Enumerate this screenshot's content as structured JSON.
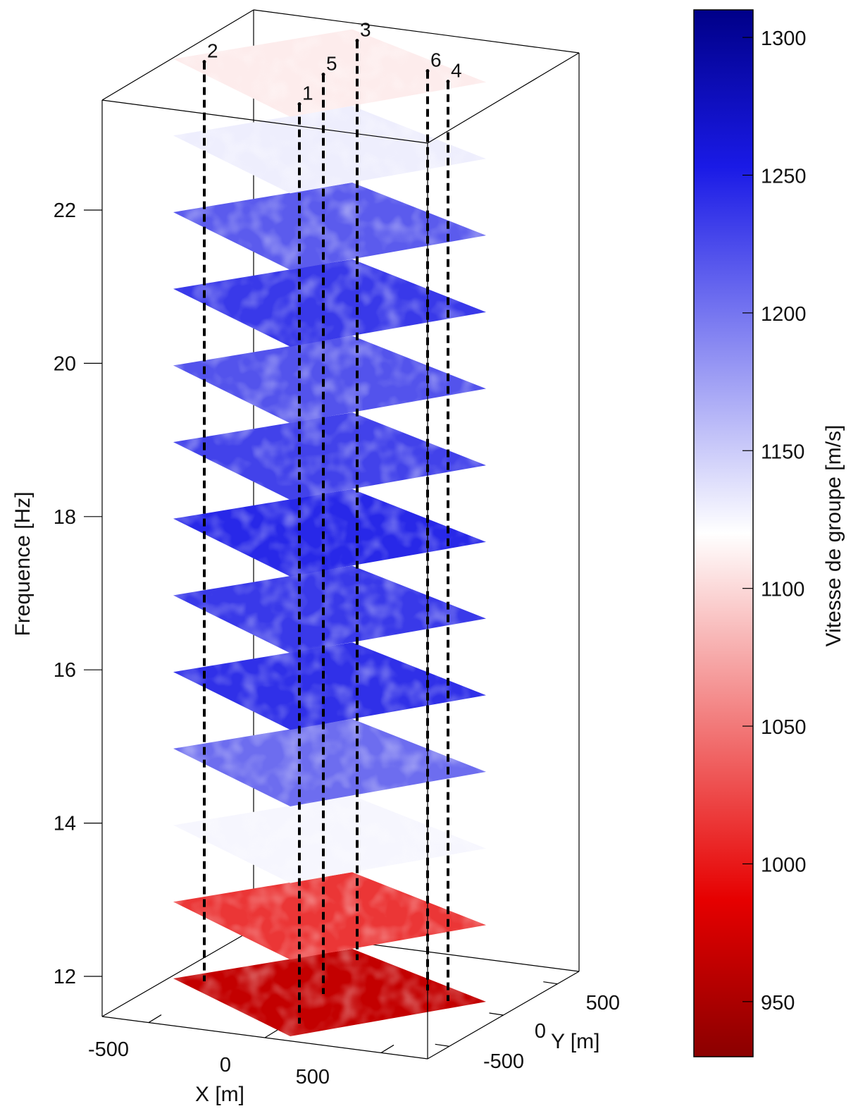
{
  "chart_data": {
    "type": "heatmap",
    "zlabel": "Frequence [Hz]",
    "xlabel": "X [m]",
    "ylabel": "Y [m]",
    "colorbar_label": "Vitesse de groupe [m/s]",
    "zticks": [
      "12",
      "14",
      "16",
      "18",
      "20",
      "22"
    ],
    "xticks": [
      "-500",
      "0",
      "500"
    ],
    "yticks": [
      "500",
      "0",
      "-500"
    ],
    "cticks": [
      "950",
      "1000",
      "1050",
      "1100",
      "1150",
      "1200",
      "1250",
      "1300"
    ],
    "zlim": [
      11.95,
      24
    ],
    "clim": [
      930,
      1310
    ],
    "grid": false,
    "slices": [
      {
        "frequency": 12,
        "mean_velocity": 965
      },
      {
        "frequency": 13,
        "mean_velocity": 1015
      },
      {
        "frequency": 14,
        "mean_velocity": 1125
      },
      {
        "frequency": 15,
        "mean_velocity": 1205
      },
      {
        "frequency": 16,
        "mean_velocity": 1240
      },
      {
        "frequency": 17,
        "mean_velocity": 1235
      },
      {
        "frequency": 18,
        "mean_velocity": 1245
      },
      {
        "frequency": 19,
        "mean_velocity": 1230
      },
      {
        "frequency": 20,
        "mean_velocity": 1220
      },
      {
        "frequency": 21,
        "mean_velocity": 1235
      },
      {
        "frequency": 22,
        "mean_velocity": 1215
      },
      {
        "frequency": 23,
        "mean_velocity": 1130
      },
      {
        "frequency": 24,
        "mean_velocity": 1110
      }
    ],
    "stations": [
      "1",
      "2",
      "3",
      "4",
      "5",
      "6"
    ]
  }
}
